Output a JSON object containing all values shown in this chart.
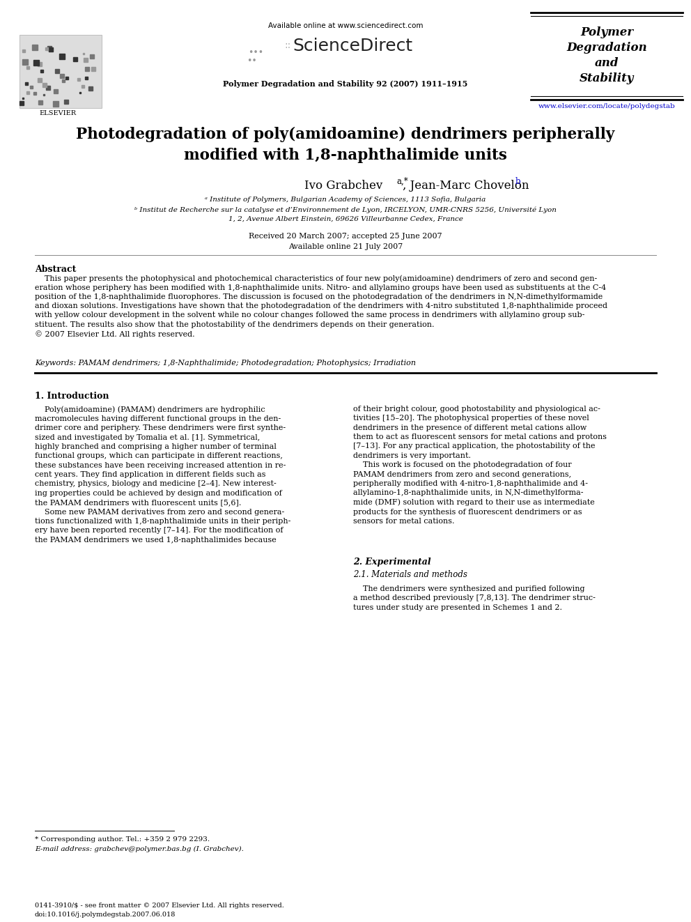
{
  "background_color": "#ffffff",
  "available_online": "Available online at www.sciencedirect.com",
  "journal_info": "Polymer Degradation and Stability 92 (2007) 1911–1915",
  "journal_name_right": [
    "Polymer",
    "Degradation",
    "and",
    "Stability"
  ],
  "website": "www.elsevier.com/locate/polydegstab",
  "elsevier_text": "ELSEVIER",
  "title_line1": "Photodegradation of poly(amidoamine) dendrimers peripherally",
  "title_line2": "modified with 1,8-naphthalimide units",
  "author_main": "Ivo Grabchev ",
  "author_super1": "a,*",
  "author_mid": ", Jean-Marc Chovelon ",
  "author_super2": "b",
  "aff_a": "ᵃ Institute of Polymers, Bulgarian Academy of Sciences, 1113 Sofia, Bulgaria",
  "aff_b1": "ᵇ Institut de Recherche sur la catalyse et d’Environnement de Lyon, IRCELYON, UMR-CNRS 5256, Université Lyon",
  "aff_b2": "1, 2, Avenue Albert Einstein, 69626 Villeurbanne Cedex, France",
  "dates_line1": "Received 20 March 2007; accepted 25 June 2007",
  "dates_line2": "Available online 21 July 2007",
  "abstract_title": "Abstract",
  "abstract_body": "    This paper presents the photophysical and photochemical characteristics of four new poly(amidoamine) dendrimers of zero and second gen-\neration whose periphery has been modified with 1,8-naphthalimide units. Nitro- and allylamino groups have been used as substituents at the C-4\nposition of the 1,8-naphthalimide fluorophores. The discussion is focused on the photodegradation of the dendrimers in N,N-dimethylformamide\nand dioxan solutions. Investigations have shown that the photodegradation of the dendrimers with 4-nitro substituted 1,8-naphthalimide proceed\nwith yellow colour development in the solvent while no colour changes followed the same process in dendrimers with allylamino group sub-\nstituent. The results also show that the photostability of the dendrimers depends on their generation.\n© 2007 Elsevier Ltd. All rights reserved.",
  "keywords": "Keywords: PAMAM dendrimers; 1,8-Naphthalimide; Photodegradation; Photophysics; Irradiation",
  "sec1_title": "1. Introduction",
  "sec1_col1": "    Poly(amidoamine) (PAMAM) dendrimers are hydrophilic\nmacromolecules having different functional groups in the den-\ndrimer core and periphery. These dendrimers were first synthe-\nsized and investigated by Tomalia et al. [1]. Symmetrical,\nhighly branched and comprising a higher number of terminal\nfunctional groups, which can participate in different reactions,\nthese substances have been receiving increased attention in re-\ncent years. They find application in different fields such as\nchemistry, physics, biology and medicine [2–4]. New interest-\ning properties could be achieved by design and modification of\nthe PAMAM dendrimers with fluorescent units [5,6].\n    Some new PAMAM derivatives from zero and second genera-\ntions functionalized with 1,8-naphthalimide units in their periph-\nery have been reported recently [7–14]. For the modification of\nthe PAMAM dendrimers we used 1,8-naphthalimides because",
  "sec1_col2": "of their bright colour, good photostability and physiological ac-\ntivities [15–20]. The photophysical properties of these novel\ndendrimers in the presence of different metal cations allow\nthem to act as fluorescent sensors for metal cations and protons\n[7–13]. For any practical application, the photostability of the\ndendrimers is very important.\n    This work is focused on the photodegradation of four\nPAMAM dendrimers from zero and second generations,\nperipherally modified with 4-nitro-1,8-naphthalimide and 4-\nallylamino-1,8-naphthalimide units, in N,N-dimethylforma-\nmide (DMF) solution with regard to their use as intermediate\nproducts for the synthesis of fluorescent dendrimers or as\nsensors for metal cations.",
  "sec2_title": "2. Experimental",
  "sec2_sub": "2.1. Materials and methods",
  "sec2_col2": "    The dendrimers were synthesized and purified following\na method described previously [7,8,13]. The dendrimer struc-\ntures under study are presented in Schemes 1 and 2.",
  "fn_star": "* Corresponding author. Tel.: +359 2 979 2293.",
  "fn_email": "E-mail address: grabchev@polymer.bas.bg (I. Grabchev).",
  "footer1": "0141-3910/$ - see front matter © 2007 Elsevier Ltd. All rights reserved.",
  "footer2": "doi:10.1016/j.polymdegstab.2007.06.018"
}
